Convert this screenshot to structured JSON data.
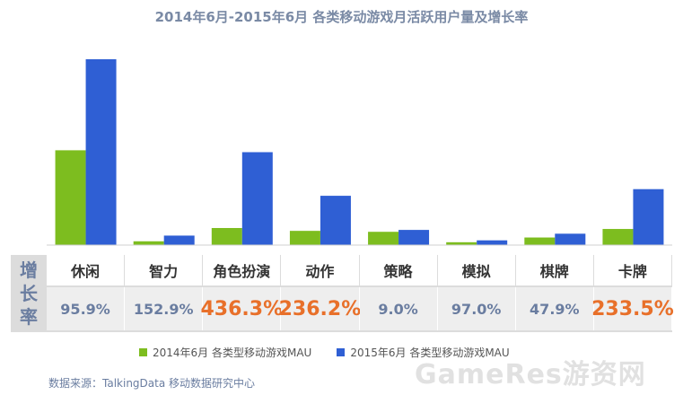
{
  "title": "2014年6月-2015年6月 各类移动游戏月活跃用户量及增长率",
  "row_header": "增长率",
  "legend": {
    "series_2014": "2014年6月 各类型移动游戏MAU",
    "series_2015": "2015年6月 各类型移动游戏MAU"
  },
  "source": "数据来源：TalkingData 移动数据研究中心",
  "watermark": "GameRes游资网",
  "colors": {
    "series_2014": "#7dbd1f",
    "series_2015": "#2f5fd4",
    "growth_normal": "#6a7da0",
    "growth_highlight": "#e8702a"
  },
  "chart_data": {
    "type": "bar",
    "title": "2014年6月-2015年6月 各类移动游戏月活跃用户量及增长率",
    "categories": [
      "休闲",
      "智力",
      "角色扮演",
      "动作",
      "策略",
      "模拟",
      "棋牌",
      "卡牌"
    ],
    "series": [
      {
        "name": "2014年6月 各类型移动游戏MAU",
        "values": [
          100,
          4,
          18,
          15,
          14,
          3,
          8,
          17
        ]
      },
      {
        "name": "2015年6月 各类型移动游戏MAU",
        "values": [
          196,
          10,
          98,
          52,
          16,
          5,
          12,
          59
        ]
      }
    ],
    "growth_rates": [
      "95.9%",
      "152.9%",
      "436.3%",
      "236.2%",
      "9.0%",
      "97.0%",
      "47.9%",
      "233.5%"
    ],
    "growth_highlight": [
      false,
      false,
      true,
      true,
      false,
      false,
      false,
      true
    ],
    "ylim": [
      0,
      200
    ],
    "grid": false,
    "legend_position": "bottom"
  }
}
